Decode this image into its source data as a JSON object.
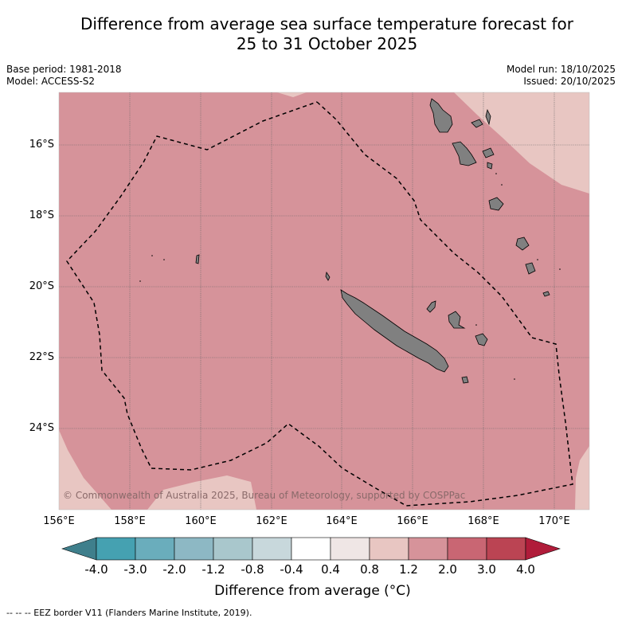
{
  "title": {
    "line1": "Difference from average sea surface temperature forecast for",
    "line2": "25 to 31 October 2025"
  },
  "meta": {
    "base_period": "Base period: 1981-2018",
    "model": "Model: ACCESS-S2",
    "model_run": "Model run: 18/10/2025",
    "issued": "Issued: 20/10/2025"
  },
  "map": {
    "latitude_labels": [
      "16°S",
      "18°S",
      "20°S",
      "22°S",
      "24°S"
    ],
    "longitude_labels": [
      "156°E",
      "158°E",
      "160°E",
      "162°E",
      "164°E",
      "166°E",
      "168°E",
      "170°E"
    ],
    "copyright": "© Commonwealth of Australia 2025, Bureau of Meteorology, supported by COSPPac",
    "colors": {
      "anomaly_1_2_to_2_0": "#d6939a",
      "anomaly_0_8_to_1_2": "#e8c6c2",
      "land": "#808080",
      "eez_border": "#000000"
    }
  },
  "colorbar": {
    "tick_labels": [
      "-4.0",
      "-3.0",
      "-2.0",
      "-1.2",
      "-0.8",
      "-0.4",
      "0.4",
      "0.8",
      "1.2",
      "2.0",
      "3.0",
      "4.0"
    ],
    "colors": [
      "#3f7f8c",
      "#45a1b1",
      "#6aadbc",
      "#8db8c4",
      "#a9c7cc",
      "#c8d8dc",
      "#ffffff",
      "#efe6e5",
      "#e8c6c2",
      "#d6939a",
      "#c96673",
      "#bb4453",
      "#b01c3a"
    ],
    "title": "Difference from average (°C)"
  },
  "footnote": "-- -- -- EEZ border V11 (Flanders Marine Institute, 2019)."
}
